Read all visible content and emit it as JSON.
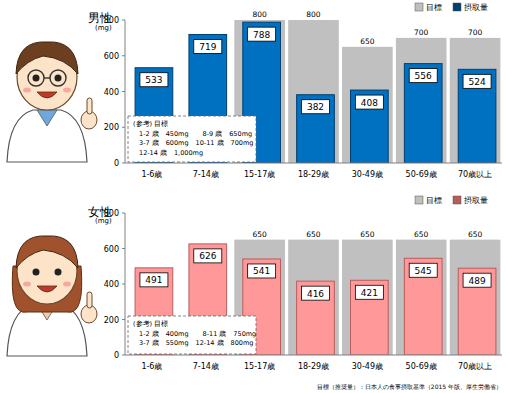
{
  "chart_data": [
    {
      "type": "bar",
      "title": "男性",
      "y_label": "(mg)",
      "categories": [
        "1-6歳",
        "7-14歳",
        "15-17歳",
        "18-29歳",
        "30-49歳",
        "50-69歳",
        "70歳以上"
      ],
      "series": [
        {
          "name": "目標",
          "color": "#c0c0c0",
          "values": [
            null,
            null,
            800,
            800,
            650,
            700,
            700
          ]
        },
        {
          "name": "摂取量",
          "color": "#0070c0",
          "values": [
            533,
            719,
            788,
            382,
            408,
            556,
            524
          ]
        }
      ],
      "ylim": [
        0,
        800
      ],
      "yticks": [
        0,
        200,
        400,
        600,
        800
      ],
      "grid": false,
      "legend": "upper right",
      "data_labels": true,
      "annotations": [
        "(参考) 目標",
        "1-2 歳　450mg　　8-9 歳　650mg",
        "3-7 歳　600mg　10-11 歳　700mg",
        "12-14 歳　1,000mg"
      ]
    },
    {
      "type": "bar",
      "title": "女性",
      "y_label": "(mg)",
      "categories": [
        "1-6歳",
        "7-14歳",
        "15-17歳",
        "18-29歳",
        "30-49歳",
        "50-69歳",
        "70歳以上"
      ],
      "series": [
        {
          "name": "目標",
          "color": "#c0c0c0",
          "values": [
            null,
            null,
            650,
            650,
            650,
            650,
            650
          ]
        },
        {
          "name": "摂取量",
          "color": "#ff9999",
          "values": [
            491,
            626,
            541,
            416,
            421,
            545,
            489
          ]
        }
      ],
      "ylim": [
        0,
        800
      ],
      "yticks": [
        0,
        200,
        400,
        600,
        800
      ],
      "grid": false,
      "legend": "upper right",
      "data_labels": true,
      "annotations": [
        "(参考) 目標",
        "1-2 歳　400mg　　8-11 歳　750mg",
        "3-7 歳　550mg　12-14 歳　800mg"
      ],
      "source": "目標（推奨量）：日本人の食事摂取基準（2015 年版、厚生労働省）"
    }
  ]
}
